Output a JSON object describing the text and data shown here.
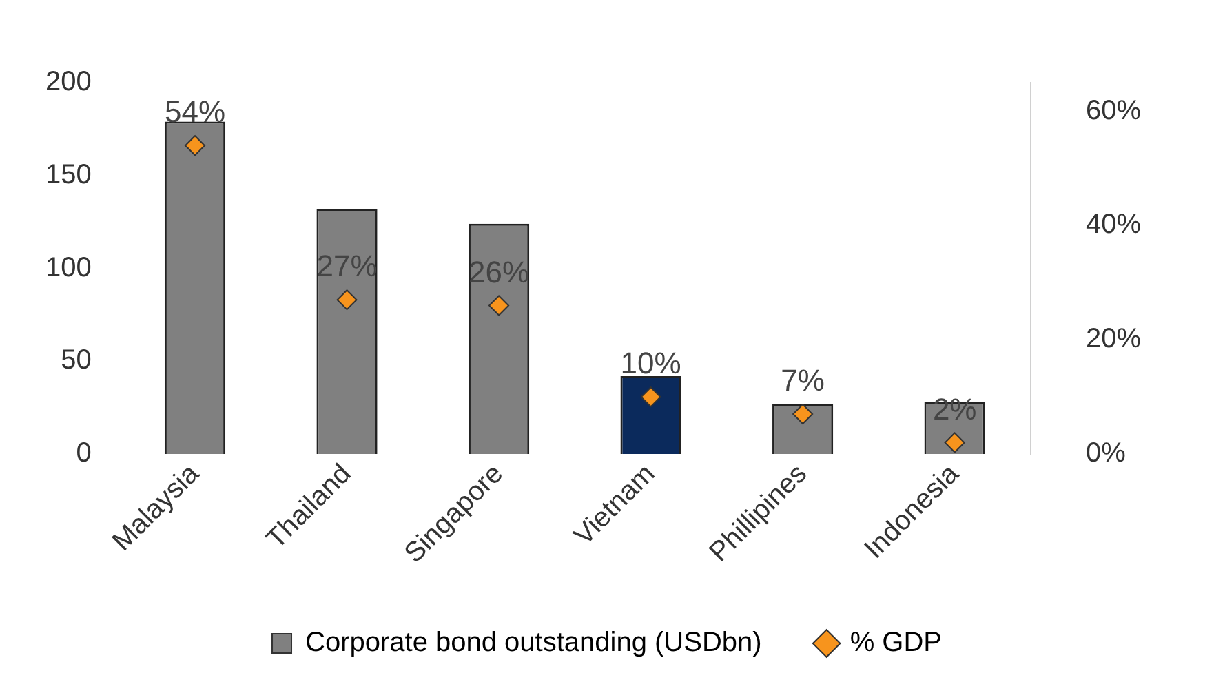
{
  "chart_data": {
    "type": "bar",
    "categories": [
      "Malaysia",
      "Thailand",
      "Singapore",
      "Vietnam",
      "Phillipines",
      "Indonesia"
    ],
    "series": [
      {
        "name": "Corporate bond outstanding (USDbn)",
        "color": "#808080",
        "colors": [
          "#808080",
          "#808080",
          "#808080",
          "#0b2a5c",
          "#808080",
          "#808080"
        ],
        "values": [
          179,
          132,
          124,
          42,
          27,
          28
        ]
      },
      {
        "name": "% GDP",
        "type": "scatter",
        "axis": "y2",
        "color": "#f7941d",
        "marker": "diamond",
        "values": [
          54,
          27,
          26,
          10,
          7,
          2
        ],
        "value_labels": [
          "54%",
          "27%",
          "26%",
          "10%",
          "7%",
          "2%"
        ]
      }
    ],
    "ylim": [
      0,
      200
    ],
    "yticks": [
      0,
      50,
      100,
      150,
      200
    ],
    "y2lim": [
      0,
      65
    ],
    "y2ticks": [
      {
        "value": 0,
        "label": "0%"
      },
      {
        "value": 20,
        "label": "20%"
      },
      {
        "value": 40,
        "label": "40%"
      },
      {
        "value": 60,
        "label": "60%"
      }
    ],
    "grid": false,
    "legend": "bottom"
  }
}
